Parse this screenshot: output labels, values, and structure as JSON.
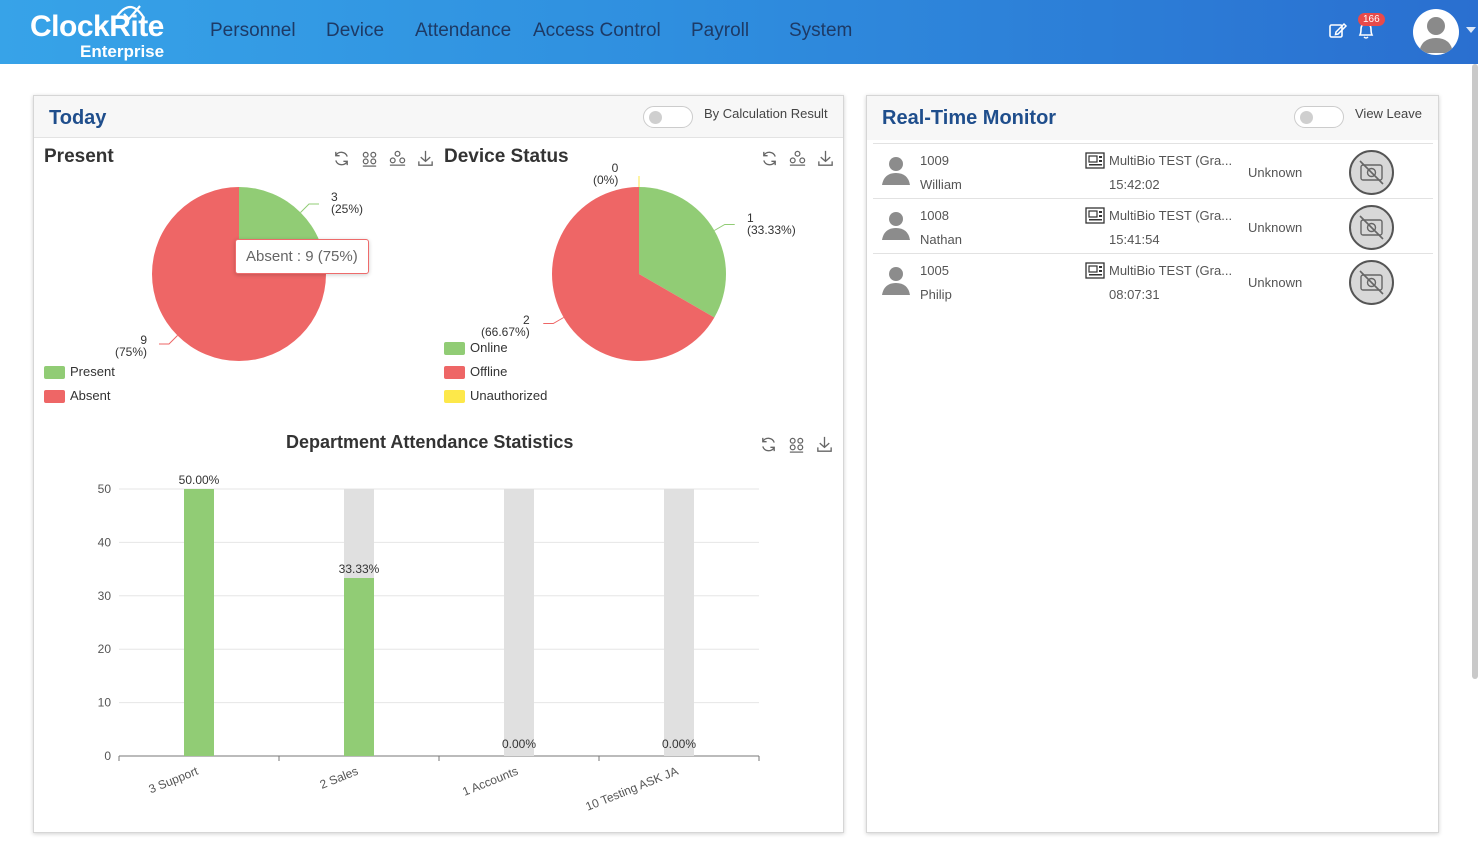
{
  "brand": {
    "name": "ClockRite",
    "sub": "Enterprise"
  },
  "nav": [
    "Personnel",
    "Device",
    "Attendance",
    "Access Control",
    "Payroll",
    "System"
  ],
  "notifications": {
    "count": "166"
  },
  "today": {
    "title": "Today",
    "toggle_label": "By Calculation Result",
    "present": {
      "title": "Present",
      "tooltip": "Absent : 9 (75%)",
      "labels": [
        {
          "value": "3",
          "pct": "(25%)"
        },
        {
          "value": "9",
          "pct": "(75%)"
        }
      ],
      "legend": [
        "Present",
        "Absent"
      ]
    },
    "device": {
      "title": "Device Status",
      "labels": [
        {
          "value": "0",
          "pct": "(0%)"
        },
        {
          "value": "1",
          "pct": "(33.33%)"
        },
        {
          "value": "2",
          "pct": "(66.67%)"
        }
      ],
      "legend": [
        "Online",
        "Offline",
        "Unauthorized"
      ]
    },
    "dept": {
      "title": "Department Attendance Statistics"
    }
  },
  "monitor": {
    "title": "Real-Time Monitor",
    "toggle_label": "View Leave",
    "rows": [
      {
        "id": "1009",
        "name": "William",
        "device": "MultiBio TEST (Gra...",
        "time": "15:42:02",
        "status": "Unknown"
      },
      {
        "id": "1008",
        "name": "Nathan",
        "device": "MultiBio TEST (Gra...",
        "time": "15:41:54",
        "status": "Unknown"
      },
      {
        "id": "1005",
        "name": "Philip",
        "device": "MultiBio TEST (Gra...",
        "time": "08:07:31",
        "status": "Unknown"
      }
    ]
  },
  "colors": {
    "present": "#91cc75",
    "absent": "#ee6666",
    "unauthorized": "#fde84a",
    "track": "#e0e0e0",
    "title": "#1f4e8c"
  },
  "chart_data": [
    {
      "type": "pie",
      "title": "Present",
      "categories": [
        "Present",
        "Absent"
      ],
      "values": [
        3,
        9
      ],
      "percents": [
        "25%",
        "75%"
      ],
      "legend": "bottom-left"
    },
    {
      "type": "pie",
      "title": "Device Status",
      "categories": [
        "Online",
        "Offline",
        "Unauthorized"
      ],
      "values": [
        1,
        2,
        0
      ],
      "percents": [
        "33.33%",
        "66.67%",
        "0%"
      ],
      "legend": "bottom-left"
    },
    {
      "type": "bar",
      "title": "Department Attendance Statistics",
      "categories": [
        "3 Support",
        "2 Sales",
        "1 Accounts",
        "10 Testing ASK JA"
      ],
      "values": [
        50,
        33.33,
        0,
        0
      ],
      "data_labels": [
        "50.00%",
        "33.33%",
        "0.00%",
        "0.00%"
      ],
      "ylim": [
        0,
        50
      ],
      "yticks": [
        0,
        10,
        20,
        30,
        40,
        50
      ],
      "grid": true
    }
  ]
}
